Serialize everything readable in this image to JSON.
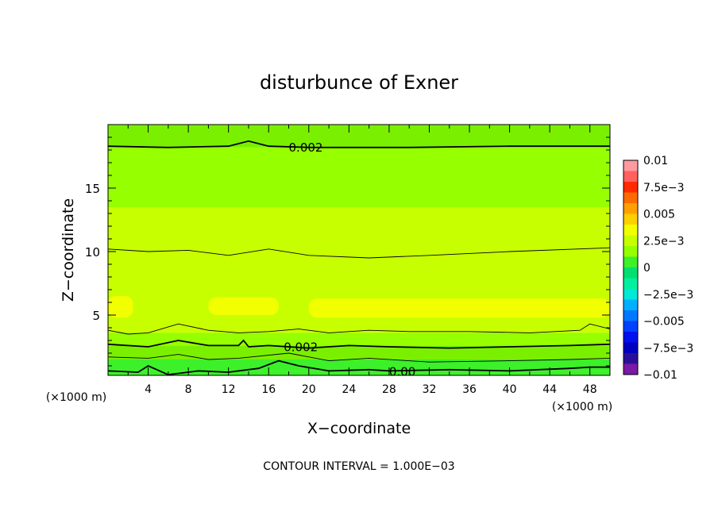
{
  "chart_data": {
    "type": "heatmap",
    "title": "disturbunce of Exner",
    "xlabel": "X−coordinate",
    "ylabel": "Z−coordinate",
    "x_unit": "(×1000 m)",
    "y_unit": "(×1000 m)",
    "footer": "CONTOUR INTERVAL = 1.000E−03",
    "xlim": [
      0,
      50
    ],
    "ylim": [
      0.25,
      20
    ],
    "x_ticks": [
      4,
      8,
      12,
      16,
      20,
      24,
      28,
      32,
      36,
      40,
      44,
      48
    ],
    "x_tick_labels": [
      "4",
      "8",
      "12",
      "16",
      "20",
      "24",
      "28",
      "32",
      "36",
      "40",
      "44",
      "48"
    ],
    "y_ticks": [
      5,
      10,
      15
    ],
    "y_tick_labels": [
      "5",
      "10",
      "15"
    ],
    "colorbar": {
      "range": [
        -0.01,
        0.01
      ],
      "tick_values": [
        0.01,
        0.0075,
        0.005,
        0.0025,
        0,
        -0.0025,
        -0.005,
        -0.0075,
        -0.01
      ],
      "tick_labels": [
        "0.01",
        "7.5e−3",
        "0.005",
        "2.5e−3",
        "0",
        "−2.5e−3",
        "−0.005",
        "−7.5e−3",
        "−0.01"
      ],
      "bands": [
        {
          "from": 0.009,
          "to": 0.01,
          "color": "#ff9aa0"
        },
        {
          "from": 0.008,
          "to": 0.009,
          "color": "#ff6060"
        },
        {
          "from": 0.007,
          "to": 0.008,
          "color": "#ff2a00"
        },
        {
          "from": 0.006,
          "to": 0.007,
          "color": "#ff6a00"
        },
        {
          "from": 0.005,
          "to": 0.006,
          "color": "#ffa000"
        },
        {
          "from": 0.004,
          "to": 0.005,
          "color": "#ffd000"
        },
        {
          "from": 0.003,
          "to": 0.004,
          "color": "#f2ff00"
        },
        {
          "from": 0.002,
          "to": 0.003,
          "color": "#c8ff00"
        },
        {
          "from": 0.001,
          "to": 0.002,
          "color": "#96ff00"
        },
        {
          "from": 0.0,
          "to": 0.001,
          "color": "#3cf02a"
        },
        {
          "from": -0.001,
          "to": 0.0,
          "color": "#00e070"
        },
        {
          "from": -0.002,
          "to": -0.001,
          "color": "#00f0a0"
        },
        {
          "from": -0.003,
          "to": -0.002,
          "color": "#00e8d8"
        },
        {
          "from": -0.004,
          "to": -0.003,
          "color": "#00b0ff"
        },
        {
          "from": -0.005,
          "to": -0.004,
          "color": "#0078ff"
        },
        {
          "from": -0.006,
          "to": -0.005,
          "color": "#0040ff"
        },
        {
          "from": -0.007,
          "to": -0.006,
          "color": "#0010ee"
        },
        {
          "from": -0.008,
          "to": -0.007,
          "color": "#0000c0"
        },
        {
          "from": -0.009,
          "to": -0.008,
          "color": "#2a1099"
        },
        {
          "from": -0.01,
          "to": -0.009,
          "color": "#7a1aa6"
        }
      ]
    },
    "value_bands_by_height": [
      {
        "z_from": 0.25,
        "z_to": 0.6,
        "color": "#3cf02a"
      },
      {
        "z_from": 0.6,
        "z_to": 1.5,
        "color": "#3cf02a"
      },
      {
        "z_from": 1.5,
        "z_to": 2.6,
        "color": "#7af000"
      },
      {
        "z_from": 2.6,
        "z_to": 3.6,
        "color": "#96ff00"
      },
      {
        "z_from": 3.6,
        "z_to": 10.0,
        "color": "#c8ff00"
      },
      {
        "z_from": 10.0,
        "z_to": 13.5,
        "color": "#c8ff00"
      },
      {
        "z_from": 13.5,
        "z_to": 18.2,
        "color": "#96ff00"
      },
      {
        "z_from": 18.2,
        "z_to": 20.0,
        "color": "#7af000"
      }
    ],
    "contours": [
      {
        "level": 0.002,
        "label": "0.002",
        "label_x": 18,
        "bold": true,
        "points": [
          [
            0,
            18.3
          ],
          [
            6,
            18.2
          ],
          [
            12,
            18.3
          ],
          [
            14,
            18.7
          ],
          [
            16,
            18.3
          ],
          [
            20,
            18.2
          ],
          [
            30,
            18.2
          ],
          [
            40,
            18.3
          ],
          [
            50,
            18.3
          ]
        ]
      },
      {
        "level": 0.003,
        "label": "",
        "bold": false,
        "points": [
          [
            0,
            10.2
          ],
          [
            4,
            10.0
          ],
          [
            8,
            10.1
          ],
          [
            12,
            9.7
          ],
          [
            16,
            10.2
          ],
          [
            20,
            9.7
          ],
          [
            26,
            9.5
          ],
          [
            32,
            9.7
          ],
          [
            40,
            10.0
          ],
          [
            50,
            10.3
          ]
        ]
      },
      {
        "level": 0.003,
        "label": "",
        "bold": false,
        "points": [
          [
            0,
            3.8
          ],
          [
            2,
            3.5
          ],
          [
            4,
            3.6
          ],
          [
            7,
            4.3
          ],
          [
            10,
            3.8
          ],
          [
            13,
            3.6
          ],
          [
            16,
            3.7
          ],
          [
            19,
            3.9
          ],
          [
            22,
            3.6
          ],
          [
            26,
            3.8
          ],
          [
            30,
            3.7
          ],
          [
            36,
            3.7
          ],
          [
            42,
            3.6
          ],
          [
            47,
            3.8
          ],
          [
            48,
            4.3
          ],
          [
            50,
            3.9
          ]
        ]
      },
      {
        "level": 0.002,
        "label": "0.002",
        "label_x": 17.5,
        "bold": true,
        "points": [
          [
            0,
            2.7
          ],
          [
            4,
            2.5
          ],
          [
            7,
            3.0
          ],
          [
            10,
            2.6
          ],
          [
            13,
            2.6
          ],
          [
            13.5,
            3.0
          ],
          [
            14,
            2.5
          ],
          [
            16,
            2.6
          ],
          [
            20,
            2.4
          ],
          [
            24,
            2.6
          ],
          [
            28,
            2.5
          ],
          [
            34,
            2.4
          ],
          [
            40,
            2.5
          ],
          [
            46,
            2.6
          ],
          [
            50,
            2.7
          ]
        ]
      },
      {
        "level": 0.001,
        "label": "",
        "bold": false,
        "points": [
          [
            0,
            1.7
          ],
          [
            4,
            1.6
          ],
          [
            7,
            1.9
          ],
          [
            10,
            1.5
          ],
          [
            13,
            1.6
          ],
          [
            18,
            2.0
          ],
          [
            22,
            1.4
          ],
          [
            26,
            1.6
          ],
          [
            32,
            1.3
          ],
          [
            40,
            1.4
          ],
          [
            46,
            1.5
          ],
          [
            50,
            1.6
          ]
        ]
      },
      {
        "level": 0.0,
        "label": "0.00",
        "label_x": 28,
        "bold": true,
        "points": [
          [
            0,
            0.6
          ],
          [
            3,
            0.5
          ],
          [
            4,
            1.0
          ],
          [
            6,
            0.3
          ],
          [
            9,
            0.6
          ],
          [
            12,
            0.5
          ],
          [
            15,
            0.8
          ],
          [
            17,
            1.4
          ],
          [
            19,
            1.0
          ],
          [
            22,
            0.6
          ],
          [
            26,
            0.7
          ],
          [
            28,
            0.6
          ],
          [
            34,
            0.7
          ],
          [
            40,
            0.6
          ],
          [
            46,
            0.8
          ],
          [
            48,
            0.9
          ],
          [
            50,
            0.9
          ]
        ]
      }
    ]
  }
}
